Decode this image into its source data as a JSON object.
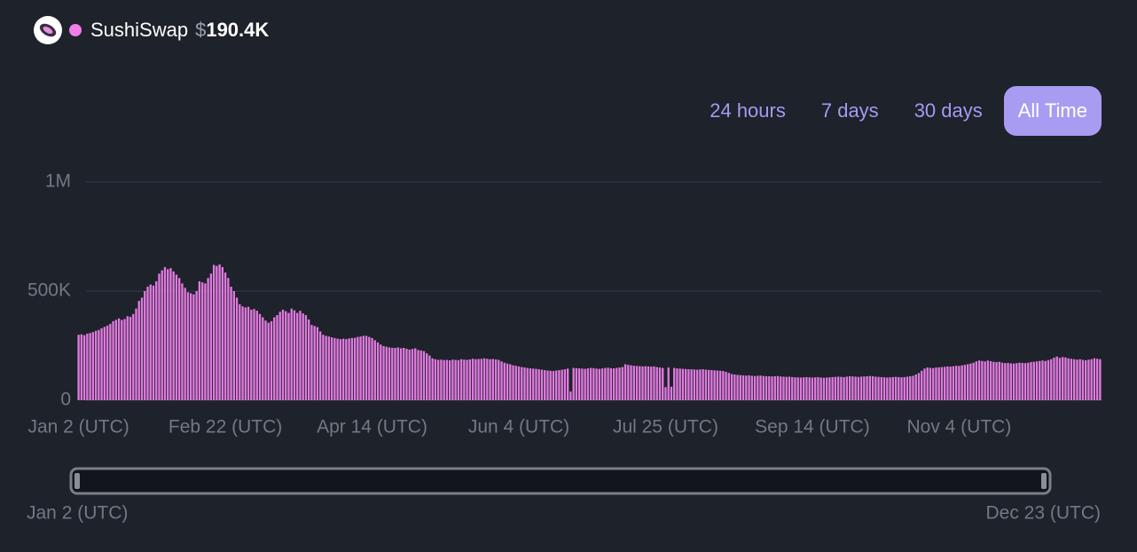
{
  "header": {
    "name": "SushiSwap",
    "currency": "$",
    "value": "190.4K"
  },
  "time_ranges": [
    "24 hours",
    "7 days",
    "30 days",
    "All Time"
  ],
  "brush": {
    "start": "Jan 2 (UTC)",
    "end": "Dec 23 (UTC)"
  },
  "chart_data": {
    "type": "bar",
    "color": "#e17ae0",
    "grid": true,
    "ylim": [
      0,
      1000000
    ],
    "yticks": [
      0,
      {
        "value": 500000,
        "label": "500K"
      },
      {
        "value": 1000000,
        "label": "1M"
      }
    ],
    "categories": [
      "Jan 2 (UTC)",
      null,
      null,
      null,
      null,
      null,
      null,
      null,
      null,
      null,
      null,
      null,
      null,
      null,
      null,
      null,
      null,
      null,
      null,
      null,
      null,
      null,
      null,
      null,
      null,
      null,
      null,
      null,
      null,
      null,
      null,
      null,
      null,
      null,
      null,
      null,
      null,
      null,
      null,
      null,
      null,
      null,
      null,
      null,
      null,
      null,
      null,
      null,
      null,
      null,
      null,
      "Feb 22 (UTC)",
      null,
      null,
      null,
      null,
      null,
      null,
      null,
      null,
      null,
      null,
      null,
      null,
      null,
      null,
      null,
      null,
      null,
      null,
      null,
      null,
      null,
      null,
      null,
      null,
      null,
      null,
      null,
      null,
      null,
      null,
      null,
      null,
      null,
      null,
      null,
      null,
      null,
      null,
      null,
      null,
      null,
      null,
      null,
      null,
      null,
      null,
      null,
      null,
      null,
      null,
      "Apr 14 (UTC)",
      null,
      null,
      null,
      null,
      null,
      null,
      null,
      null,
      null,
      null,
      null,
      null,
      null,
      null,
      null,
      null,
      null,
      null,
      null,
      null,
      null,
      null,
      null,
      null,
      null,
      null,
      null,
      null,
      null,
      null,
      null,
      null,
      null,
      null,
      null,
      null,
      null,
      null,
      null,
      null,
      null,
      null,
      null,
      null,
      null,
      null,
      null,
      null,
      null,
      null,
      "Jun 4 (UTC)",
      null,
      null,
      null,
      null,
      null,
      null,
      null,
      null,
      null,
      null,
      null,
      null,
      null,
      null,
      null,
      null,
      null,
      null,
      null,
      null,
      null,
      null,
      null,
      null,
      null,
      null,
      null,
      null,
      null,
      null,
      null,
      null,
      null,
      null,
      null,
      null,
      null,
      null,
      null,
      null,
      null,
      null,
      null,
      null,
      null,
      null,
      null,
      null,
      null,
      null,
      "Jul 25 (UTC)",
      null,
      null,
      null,
      null,
      null,
      null,
      null,
      null,
      null,
      null,
      null,
      null,
      null,
      null,
      null,
      null,
      null,
      null,
      null,
      null,
      null,
      null,
      null,
      null,
      null,
      null,
      null,
      null,
      null,
      null,
      null,
      null,
      null,
      null,
      null,
      null,
      null,
      null,
      null,
      null,
      null,
      null,
      null,
      null,
      null,
      null,
      null,
      null,
      null,
      null,
      "Sep 14 (UTC)",
      null,
      null,
      null,
      null,
      null,
      null,
      null,
      null,
      null,
      null,
      null,
      null,
      null,
      null,
      null,
      null,
      null,
      null,
      null,
      null,
      null,
      null,
      null,
      null,
      null,
      null,
      null,
      null,
      null,
      null,
      null,
      null,
      null,
      null,
      null,
      null,
      null,
      null,
      null,
      null,
      null,
      null,
      null,
      null,
      null,
      null,
      null,
      null,
      null,
      null,
      "Nov 4 (UTC)",
      null,
      null,
      null,
      null,
      null,
      null,
      null,
      null,
      null,
      null,
      null,
      null,
      null,
      null,
      null,
      null,
      null,
      null,
      null,
      null,
      null,
      null,
      null,
      null,
      null,
      null,
      null,
      null,
      null,
      null,
      null,
      null,
      null,
      null,
      null,
      null,
      null,
      null,
      null,
      null,
      null,
      null,
      null,
      null,
      null,
      null,
      null,
      null,
      null
    ],
    "values": [
      300000,
      302000,
      298000,
      305000,
      308000,
      312000,
      318000,
      322000,
      330000,
      336000,
      342000,
      350000,
      362000,
      368000,
      375000,
      368000,
      372000,
      385000,
      382000,
      395000,
      420000,
      455000,
      470000,
      500000,
      520000,
      530000,
      525000,
      545000,
      580000,
      595000,
      610000,
      600000,
      605000,
      590000,
      575000,
      560000,
      535000,
      515000,
      495000,
      490000,
      485000,
      500000,
      545000,
      540000,
      535000,
      560000,
      580000,
      620000,
      615000,
      622000,
      610000,
      585000,
      560000,
      520000,
      500000,
      470000,
      440000,
      430000,
      425000,
      428000,
      415000,
      418000,
      410000,
      395000,
      380000,
      365000,
      355000,
      362000,
      380000,
      390000,
      405000,
      415000,
      408000,
      400000,
      420000,
      412000,
      400000,
      410000,
      398000,
      390000,
      370000,
      345000,
      340000,
      335000,
      315000,
      300000,
      295000,
      292000,
      288000,
      285000,
      282000,
      280000,
      282000,
      280000,
      283000,
      285000,
      286000,
      290000,
      292000,
      295000,
      295000,
      290000,
      285000,
      275000,
      265000,
      255000,
      248000,
      245000,
      242000,
      240000,
      240000,
      242000,
      238000,
      240000,
      236000,
      232000,
      235000,
      238000,
      230000,
      228000,
      225000,
      215000,
      205000,
      192000,
      188000,
      185000,
      186000,
      184000,
      185000,
      183000,
      186000,
      185000,
      184000,
      188000,
      186000,
      185000,
      187000,
      190000,
      188000,
      189000,
      190000,
      192000,
      190000,
      188000,
      189000,
      187000,
      185000,
      178000,
      172000,
      168000,
      165000,
      160000,
      158000,
      155000,
      152000,
      150000,
      148000,
      146000,
      145000,
      144000,
      142000,
      140000,
      138000,
      136000,
      135000,
      134000,
      136000,
      138000,
      140000,
      142000,
      145000,
      40000,
      148000,
      147000,
      146000,
      145000,
      144000,
      146000,
      148000,
      147000,
      145000,
      144000,
      146000,
      148000,
      149000,
      147000,
      146000,
      148000,
      150000,
      152000,
      165000,
      162000,
      160000,
      158000,
      157000,
      156000,
      155000,
      156000,
      155000,
      154000,
      155000,
      152000,
      150000,
      148000,
      60000,
      150000,
      62000,
      148000,
      146000,
      145000,
      144000,
      143000,
      142000,
      142000,
      141000,
      140000,
      141000,
      142000,
      140000,
      139000,
      138000,
      137000,
      136000,
      135000,
      134000,
      130000,
      125000,
      120000,
      118000,
      116000,
      115000,
      114000,
      113000,
      114000,
      112000,
      111000,
      112000,
      113000,
      111000,
      110000,
      110000,
      109000,
      110000,
      111000,
      109000,
      108000,
      107000,
      108000,
      106000,
      105000,
      105000,
      104000,
      105000,
      106000,
      105000,
      104000,
      105000,
      106000,
      104000,
      103000,
      104000,
      105000,
      106000,
      107000,
      108000,
      107000,
      106000,
      108000,
      110000,
      109000,
      108000,
      107000,
      108000,
      109000,
      110000,
      111000,
      110000,
      108000,
      107000,
      106000,
      105000,
      104000,
      105000,
      106000,
      107000,
      106000,
      105000,
      106000,
      108000,
      110000,
      112000,
      118000,
      125000,
      135000,
      145000,
      150000,
      148000,
      147000,
      150000,
      151000,
      152000,
      153000,
      155000,
      154000,
      156000,
      158000,
      157000,
      160000,
      162000,
      165000,
      168000,
      172000,
      178000,
      182000,
      180000,
      178000,
      182000,
      179000,
      176000,
      175000,
      176000,
      172000,
      170000,
      171000,
      169000,
      168000,
      170000,
      172000,
      171000,
      170000,
      172000,
      175000,
      176000,
      178000,
      180000,
      182000,
      180000,
      184000,
      188000,
      195000,
      200000,
      194000,
      198000,
      196000,
      192000,
      190000,
      188000,
      186000,
      188000,
      185000,
      183000,
      186000,
      188000,
      192000,
      190000,
      188000
    ]
  }
}
